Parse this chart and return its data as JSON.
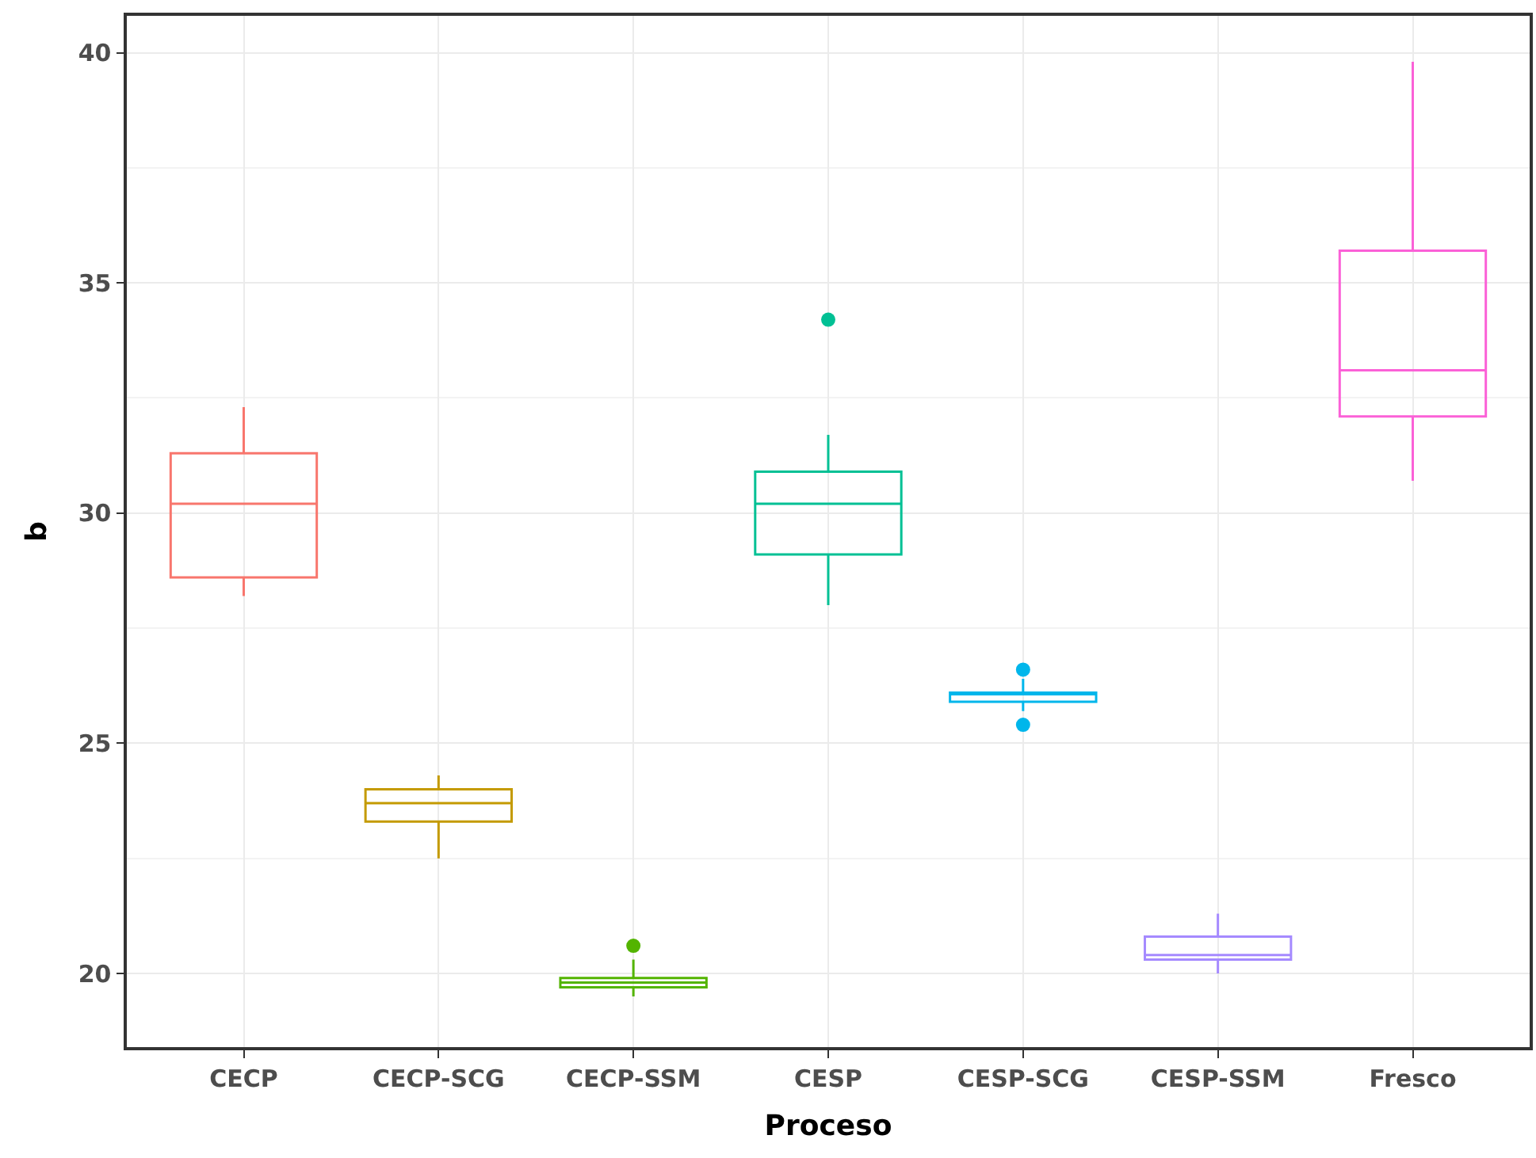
{
  "chart_data": {
    "type": "box",
    "xlabel": "Proceso",
    "ylabel": "b",
    "categories": [
      "CECP",
      "CECP-SCG",
      "CECP-SSM",
      "CESP",
      "CESP-SCG",
      "CESP-SSM",
      "Fresco"
    ],
    "colors": [
      "#f8766d",
      "#c49a00",
      "#53b400",
      "#00c094",
      "#00b6eb",
      "#a58aff",
      "#fb61d7"
    ],
    "boxes": [
      {
        "low": 28.2,
        "q1": 28.6,
        "median": 30.2,
        "q3": 31.3,
        "high": 32.3
      },
      {
        "low": 22.5,
        "q1": 23.3,
        "median": 23.7,
        "q3": 24.0,
        "high": 24.3
      },
      {
        "low": 19.5,
        "q1": 19.7,
        "median": 19.8,
        "q3": 19.9,
        "high": 20.3,
        "outliers": [
          20.6
        ]
      },
      {
        "low": 28.0,
        "q1": 29.1,
        "median": 30.2,
        "q3": 30.9,
        "high": 31.7,
        "outliers": [
          34.2
        ]
      },
      {
        "low": 25.7,
        "q1": 25.9,
        "median": 26.1,
        "q3": 26.1,
        "high": 26.4,
        "outliers": [
          26.6,
          25.4
        ]
      },
      {
        "low": 20.0,
        "q1": 20.3,
        "median": 20.4,
        "q3": 20.8,
        "high": 21.3
      },
      {
        "low": 30.7,
        "q1": 32.1,
        "median": 33.1,
        "q3": 35.7,
        "high": 39.8
      }
    ],
    "ylim": [
      18.4,
      40.8
    ],
    "yticks": [
      20,
      25,
      30,
      35,
      40
    ],
    "grid": true
  }
}
